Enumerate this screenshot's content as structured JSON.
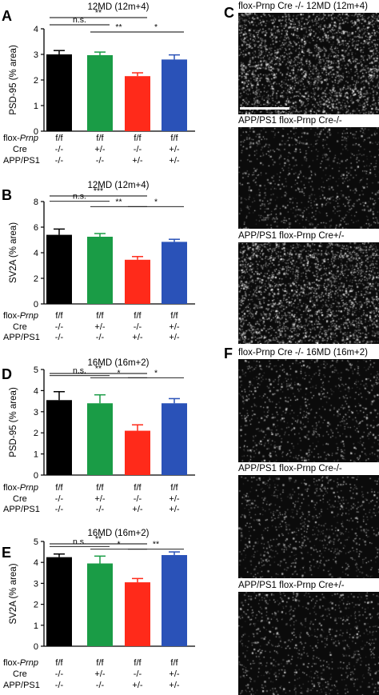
{
  "panels": {
    "left": [
      {
        "letter": "A",
        "title": "12MD (12m+4)",
        "ylabel": "PSD-95 (% area)",
        "ylim": [
          0,
          4
        ],
        "yticks": [
          0,
          1,
          2,
          3,
          4
        ],
        "values": [
          3.0,
          2.97,
          2.15,
          2.8
        ],
        "errors": [
          0.15,
          0.12,
          0.13,
          0.18
        ],
        "bar_colors": [
          "#000000",
          "#1a9c46",
          "#ff2a1a",
          "#2a52b8"
        ],
        "significance": [
          {
            "from": 0,
            "to": 2,
            "text": "**",
            "level": 2
          },
          {
            "from": 0,
            "to": 1,
            "text": "n.s.",
            "level": 1
          },
          {
            "from": 1,
            "to": 2,
            "text": "**",
            "level": 0
          },
          {
            "from": 2,
            "to": 3,
            "text": "*",
            "level": 0
          }
        ],
        "genotype_rows": [
          {
            "label": "flox-",
            "label_italic": "Prnp",
            "values": [
              "f/f",
              "f/f",
              "f/f",
              "f/f"
            ]
          },
          {
            "label": "Cre",
            "label_italic": "",
            "values": [
              "-/-",
              "+/-",
              "-/-",
              "+/-"
            ]
          },
          {
            "label": "APP/PS1",
            "label_italic": "",
            "values": [
              "-/-",
              "-/-",
              "+/-",
              "+/-"
            ]
          }
        ]
      },
      {
        "letter": "B",
        "title": "12MD (12m+4)",
        "ylabel": "SV2A (% area)",
        "ylim": [
          0,
          8
        ],
        "yticks": [
          0,
          2,
          4,
          6,
          8
        ],
        "values": [
          5.4,
          5.25,
          3.45,
          4.85
        ],
        "errors": [
          0.45,
          0.25,
          0.25,
          0.2
        ],
        "bar_colors": [
          "#000000",
          "#1a9c46",
          "#ff2a1a",
          "#2a52b8"
        ],
        "significance": [
          {
            "from": 0,
            "to": 2,
            "text": "***",
            "level": 2
          },
          {
            "from": 0,
            "to": 1,
            "text": "n.s.",
            "level": 1
          },
          {
            "from": 1,
            "to": 2,
            "text": "**",
            "level": 0
          },
          {
            "from": 2,
            "to": 3,
            "text": "*",
            "level": 0
          }
        ],
        "genotype_rows": [
          {
            "label": "flox-",
            "label_italic": "Prnp",
            "values": [
              "f/f",
              "f/f",
              "f/f",
              "f/f"
            ]
          },
          {
            "label": "Cre",
            "label_italic": "",
            "values": [
              "-/-",
              "+/-",
              "-/-",
              "+/-"
            ]
          },
          {
            "label": "APP/PS1",
            "label_italic": "",
            "values": [
              "-/-",
              "-/-",
              "+/-",
              "+/-"
            ]
          }
        ]
      },
      {
        "letter": "D",
        "title": "16MD (16m+2)",
        "ylabel": "PSD-95 (% area)",
        "ylim": [
          0,
          5
        ],
        "yticks": [
          0,
          1,
          2,
          3,
          4,
          5
        ],
        "values": [
          3.55,
          3.4,
          2.1,
          3.4
        ],
        "errors": [
          0.4,
          0.4,
          0.28,
          0.22
        ],
        "bar_colors": [
          "#000000",
          "#1a9c46",
          "#ff2a1a",
          "#2a52b8"
        ],
        "significance": [
          {
            "from": 0,
            "to": 2,
            "text": "**",
            "level": 2
          },
          {
            "from": 0,
            "to": 1,
            "text": "n.s.",
            "level": 1
          },
          {
            "from": 1,
            "to": 2,
            "text": "*",
            "level": 0
          },
          {
            "from": 2,
            "to": 3,
            "text": "*",
            "level": 0
          }
        ],
        "genotype_rows": [
          {
            "label": "flox-",
            "label_italic": "Prnp",
            "values": [
              "f/f",
              "f/f",
              "f/f",
              "f/f"
            ]
          },
          {
            "label": "Cre",
            "label_italic": "",
            "values": [
              "-/-",
              "+/-",
              "-/-",
              "+/-"
            ]
          },
          {
            "label": "APP/PS1",
            "label_italic": "",
            "values": [
              "-/-",
              "-/-",
              "+/-",
              "+/-"
            ]
          }
        ]
      },
      {
        "letter": "E",
        "title": "16MD (16m+2)",
        "ylabel": "SV2A (% area)",
        "ylim": [
          0,
          5
        ],
        "yticks": [
          0,
          1,
          2,
          3,
          4,
          5
        ],
        "values": [
          4.25,
          3.95,
          3.05,
          4.35
        ],
        "errors": [
          0.15,
          0.35,
          0.18,
          0.15
        ],
        "bar_colors": [
          "#000000",
          "#1a9c46",
          "#ff2a1a",
          "#2a52b8"
        ],
        "significance": [
          {
            "from": 0,
            "to": 2,
            "text": "**",
            "level": 2
          },
          {
            "from": 0,
            "to": 1,
            "text": "n.s.",
            "level": 1
          },
          {
            "from": 1,
            "to": 2,
            "text": "*",
            "level": 0
          },
          {
            "from": 2,
            "to": 3,
            "text": "**",
            "level": 0
          }
        ],
        "genotype_rows": [
          {
            "label": "flox-",
            "label_italic": "Prnp",
            "values": [
              "f/f",
              "f/f",
              "f/f",
              "f/f"
            ]
          },
          {
            "label": "Cre",
            "label_italic": "",
            "values": [
              "-/-",
              "+/-",
              "-/-",
              "+/-"
            ]
          },
          {
            "label": "APP/PS1",
            "label_italic": "",
            "values": [
              "-/-",
              "-/-",
              "+/-",
              "+/-"
            ]
          }
        ]
      }
    ],
    "right": {
      "C": {
        "letter": "C",
        "labels": [
          "flox-Prnp Cre -/-  12MD (12m+4)",
          "APP/PS1 flox-Prnp Cre-/-",
          "APP/PS1 flox-Prnp Cre+/-"
        ]
      },
      "F": {
        "letter": "F",
        "labels": [
          "flox-Prnp Cre -/-  16MD (16m+2)",
          "APP/PS1 flox-Prnp Cre-/-",
          "APP/PS1 flox-Prnp Cre+/-"
        ]
      }
    }
  },
  "chart_data": [
    {
      "type": "bar",
      "title": "12MD (12m+4)",
      "ylabel": "PSD-95 (% area)",
      "categories": [
        "f/f -/- -/-",
        "f/f +/- -/-",
        "f/f -/- +/-",
        "f/f +/- +/-"
      ],
      "values": [
        3.0,
        2.97,
        2.15,
        2.8
      ],
      "errors": [
        0.15,
        0.12,
        0.13,
        0.18
      ],
      "ylim": [
        0,
        4
      ]
    },
    {
      "type": "bar",
      "title": "12MD (12m+4)",
      "ylabel": "SV2A (% area)",
      "categories": [
        "f/f -/- -/-",
        "f/f +/- -/-",
        "f/f -/- +/-",
        "f/f +/- +/-"
      ],
      "values": [
        5.4,
        5.25,
        3.45,
        4.85
      ],
      "errors": [
        0.45,
        0.25,
        0.25,
        0.2
      ],
      "ylim": [
        0,
        8
      ]
    },
    {
      "type": "bar",
      "title": "16MD (16m+2)",
      "ylabel": "PSD-95 (% area)",
      "categories": [
        "f/f -/- -/-",
        "f/f +/- -/-",
        "f/f -/- +/-",
        "f/f +/- +/-"
      ],
      "values": [
        3.55,
        3.4,
        2.1,
        3.4
      ],
      "errors": [
        0.4,
        0.4,
        0.28,
        0.22
      ],
      "ylim": [
        0,
        5
      ]
    },
    {
      "type": "bar",
      "title": "16MD (16m+2)",
      "ylabel": "SV2A (% area)",
      "categories": [
        "f/f -/- -/-",
        "f/f +/- -/-",
        "f/f -/- +/-",
        "f/f +/- +/-"
      ],
      "values": [
        4.25,
        3.95,
        3.05,
        4.35
      ],
      "errors": [
        0.15,
        0.35,
        0.18,
        0.15
      ],
      "ylim": [
        0,
        5
      ]
    }
  ]
}
